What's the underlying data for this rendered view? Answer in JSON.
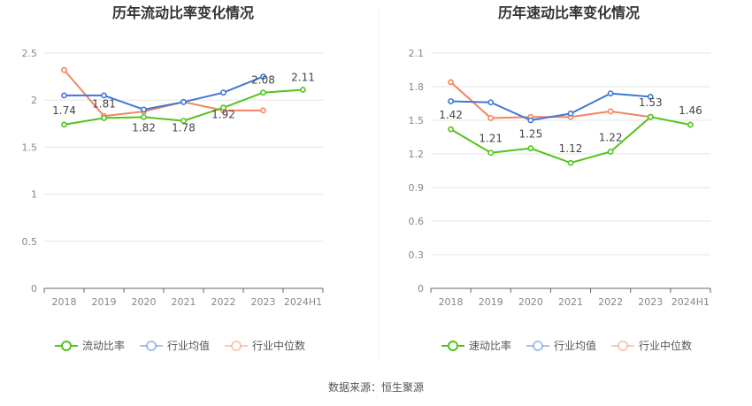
{
  "source_text": "数据来源：恒生聚源",
  "colors": {
    "green": "#52c41a",
    "blue": "#3c78d8",
    "orange": "#f4845f"
  },
  "chart_data": [
    {
      "type": "line",
      "title": "历年流动比率变化情况",
      "categories": [
        "2018",
        "2019",
        "2020",
        "2021",
        "2022",
        "2023",
        "2024H1"
      ],
      "ylim": [
        0,
        2.5
      ],
      "yticks": [
        0,
        0.5,
        1,
        1.5,
        2,
        2.5
      ],
      "ytick_labels": [
        "0",
        "0.5",
        "1",
        "1.5",
        "2",
        "2.5"
      ],
      "grid": true,
      "legend": "bottom-center",
      "series": [
        {
          "name": "流动比率",
          "color": "#52c41a",
          "values": [
            1.74,
            1.81,
            1.82,
            1.78,
            1.92,
            2.08,
            2.11
          ],
          "labels": [
            "1.74",
            "1.81",
            "1.82",
            "1.78",
            "1.92",
            "2.08",
            "2.11"
          ]
        },
        {
          "name": "行业均值",
          "color": "#3c78d8",
          "values": [
            2.05,
            2.05,
            1.9,
            1.98,
            2.08,
            2.25,
            null
          ]
        },
        {
          "name": "行业中位数",
          "color": "#f4845f",
          "values": [
            2.32,
            1.83,
            1.88,
            1.98,
            1.89,
            1.89,
            null
          ]
        }
      ]
    },
    {
      "type": "line",
      "title": "历年速动比率变化情况",
      "categories": [
        "2018",
        "2019",
        "2020",
        "2021",
        "2022",
        "2023",
        "2024H1"
      ],
      "ylim": [
        0,
        2.1
      ],
      "yticks": [
        0,
        0.3,
        0.6,
        0.9,
        1.2,
        1.5,
        1.8,
        2.1
      ],
      "ytick_labels": [
        "0",
        "0.3",
        "0.6",
        "0.9",
        "1.2",
        "1.5",
        "1.8",
        "2.1"
      ],
      "grid": true,
      "legend": "bottom-center",
      "series": [
        {
          "name": "速动比率",
          "color": "#52c41a",
          "values": [
            1.42,
            1.21,
            1.25,
            1.12,
            1.22,
            1.53,
            1.46
          ],
          "labels": [
            "1.42",
            "1.21",
            "1.25",
            "1.12",
            "1.22",
            "1.53",
            "1.46"
          ]
        },
        {
          "name": "行业均值",
          "color": "#3c78d8",
          "values": [
            1.67,
            1.66,
            1.5,
            1.56,
            1.74,
            1.71,
            null
          ]
        },
        {
          "name": "行业中位数",
          "color": "#f4845f",
          "values": [
            1.84,
            1.52,
            1.53,
            1.53,
            1.58,
            1.53,
            null
          ]
        }
      ]
    }
  ]
}
